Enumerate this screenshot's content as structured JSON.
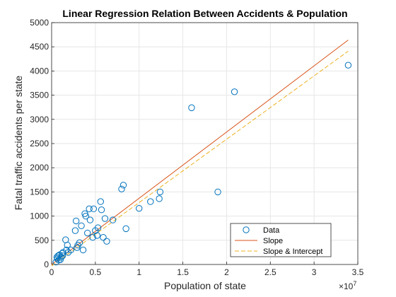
{
  "chart_data": {
    "type": "scatter",
    "title": "Linear Regression Relation Between Accidents & Population",
    "xlabel": "Population of state",
    "ylabel": "Fatal traffic accidents per state",
    "x_exponent_label": "×10",
    "x_exponent_power": "7",
    "xlim": [
      0,
      35000000
    ],
    "ylim": [
      0,
      5000
    ],
    "xticks": [
      0,
      5000000,
      10000000,
      15000000,
      20000000,
      25000000,
      30000000,
      35000000
    ],
    "xtick_labels": [
      "0",
      "0.5",
      "1",
      "1.5",
      "2",
      "2.5",
      "3",
      "3.5"
    ],
    "yticks": [
      0,
      500,
      1000,
      1500,
      2000,
      2500,
      3000,
      3500,
      4000,
      4500,
      5000
    ],
    "ytick_labels": [
      "0",
      "500",
      "1000",
      "1500",
      "2000",
      "2500",
      "3000",
      "3500",
      "4000",
      "4500",
      "5000"
    ],
    "grid": true,
    "legend_position": "bottom-right",
    "colors": {
      "data": "#0072BD",
      "slope": "#D95319",
      "slope_intercept": "#EDB120"
    },
    "series": [
      {
        "name": "Data",
        "kind": "scatter",
        "x": [
          500000,
          600000,
          650000,
          750000,
          800000,
          900000,
          1000000,
          1100000,
          1200000,
          1250000,
          1300000,
          1600000,
          1700000,
          1800000,
          1900000,
          2200000,
          2700000,
          2800000,
          2900000,
          3000000,
          3200000,
          3400000,
          3600000,
          3800000,
          3900000,
          4100000,
          4300000,
          4400000,
          4700000,
          4800000,
          5000000,
          5200000,
          5300000,
          5600000,
          5700000,
          5900000,
          6100000,
          6300000,
          7000000,
          8000000,
          8200000,
          8500000,
          10000000,
          11300000,
          12300000,
          12400000,
          16000000,
          19000000,
          20900000,
          33900000
        ],
        "y": [
          50,
          150,
          120,
          180,
          90,
          200,
          100,
          150,
          230,
          180,
          250,
          510,
          300,
          400,
          250,
          300,
          700,
          900,
          350,
          400,
          450,
          800,
          300,
          1050,
          1000,
          650,
          1150,
          920,
          560,
          1150,
          700,
          600,
          760,
          1300,
          1130,
          560,
          950,
          480,
          920,
          1560,
          1640,
          740,
          1160,
          1300,
          1360,
          1500,
          3240,
          1500,
          3570,
          4120
        ]
      },
      {
        "name": "Slope",
        "kind": "line",
        "x": [
          0,
          33900000
        ],
        "y": [
          0,
          4640
        ]
      },
      {
        "name": "Slope & Intercept",
        "kind": "line",
        "x": [
          0,
          33900000
        ],
        "y": [
          -30,
          4410
        ]
      }
    ],
    "legend": [
      "Data",
      "Slope",
      "Slope & Intercept"
    ]
  }
}
